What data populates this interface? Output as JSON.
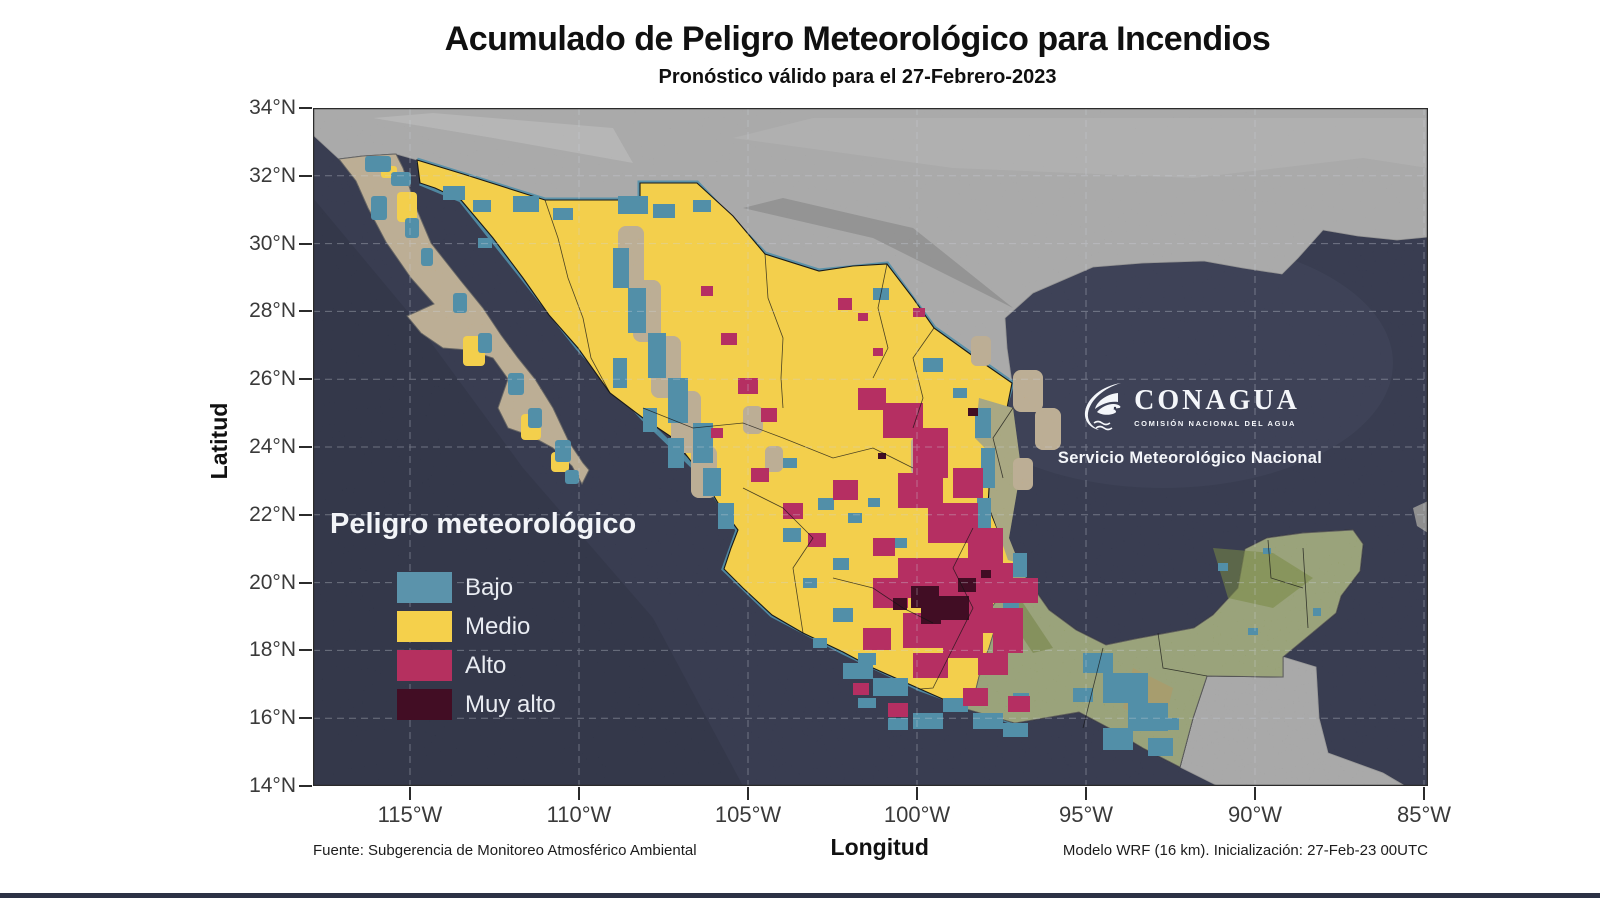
{
  "header": {
    "title": "Acumulado de Peligro Meteorológico para Incendios",
    "subtitle": "Pronóstico válido para el 27-Febrero-2023"
  },
  "axes": {
    "x_label": "Longitud",
    "y_label": "Latitud",
    "lat_ticks": [
      "34°N",
      "32°N",
      "30°N",
      "28°N",
      "26°N",
      "24°N",
      "22°N",
      "20°N",
      "18°N",
      "16°N",
      "14°N"
    ],
    "lon_ticks": [
      "115°W",
      "110°W",
      "105°W",
      "100°W",
      "95°W",
      "90°W",
      "85°W"
    ]
  },
  "legend": {
    "title": "Peligro meteorológico",
    "items": [
      {
        "label": "Bajo",
        "color": "#5b93ab"
      },
      {
        "label": "Medio",
        "color": "#f5d04b"
      },
      {
        "label": "Alto",
        "color": "#b5305f"
      },
      {
        "label": "Muy alto",
        "color": "#420d24"
      }
    ]
  },
  "branding": {
    "org": "CONAGUA",
    "org_subtitle": "COMISIÓN NACIONAL DEL AGUA",
    "service_line": "Servicio Meteorológico Nacional"
  },
  "footer": {
    "source": "Fuente: Subgerencia de Monitoreo Atmosférico Ambiental",
    "model": "Modelo WRF (16 km). Inicialización: 27-Feb-23  00UTC"
  },
  "map": {
    "palette": {
      "ocean": "#30344a",
      "us_land": "#a0a0a0",
      "outside_land": "#9a9a9a",
      "mexico_fill": "#f3cf4c",
      "bajo": "#528fa8",
      "alto": "#b52f62",
      "muy_alto": "#410d24",
      "vegetation": "#87974e",
      "terrain": "#c7a977",
      "grid": "#ccd1db"
    }
  }
}
